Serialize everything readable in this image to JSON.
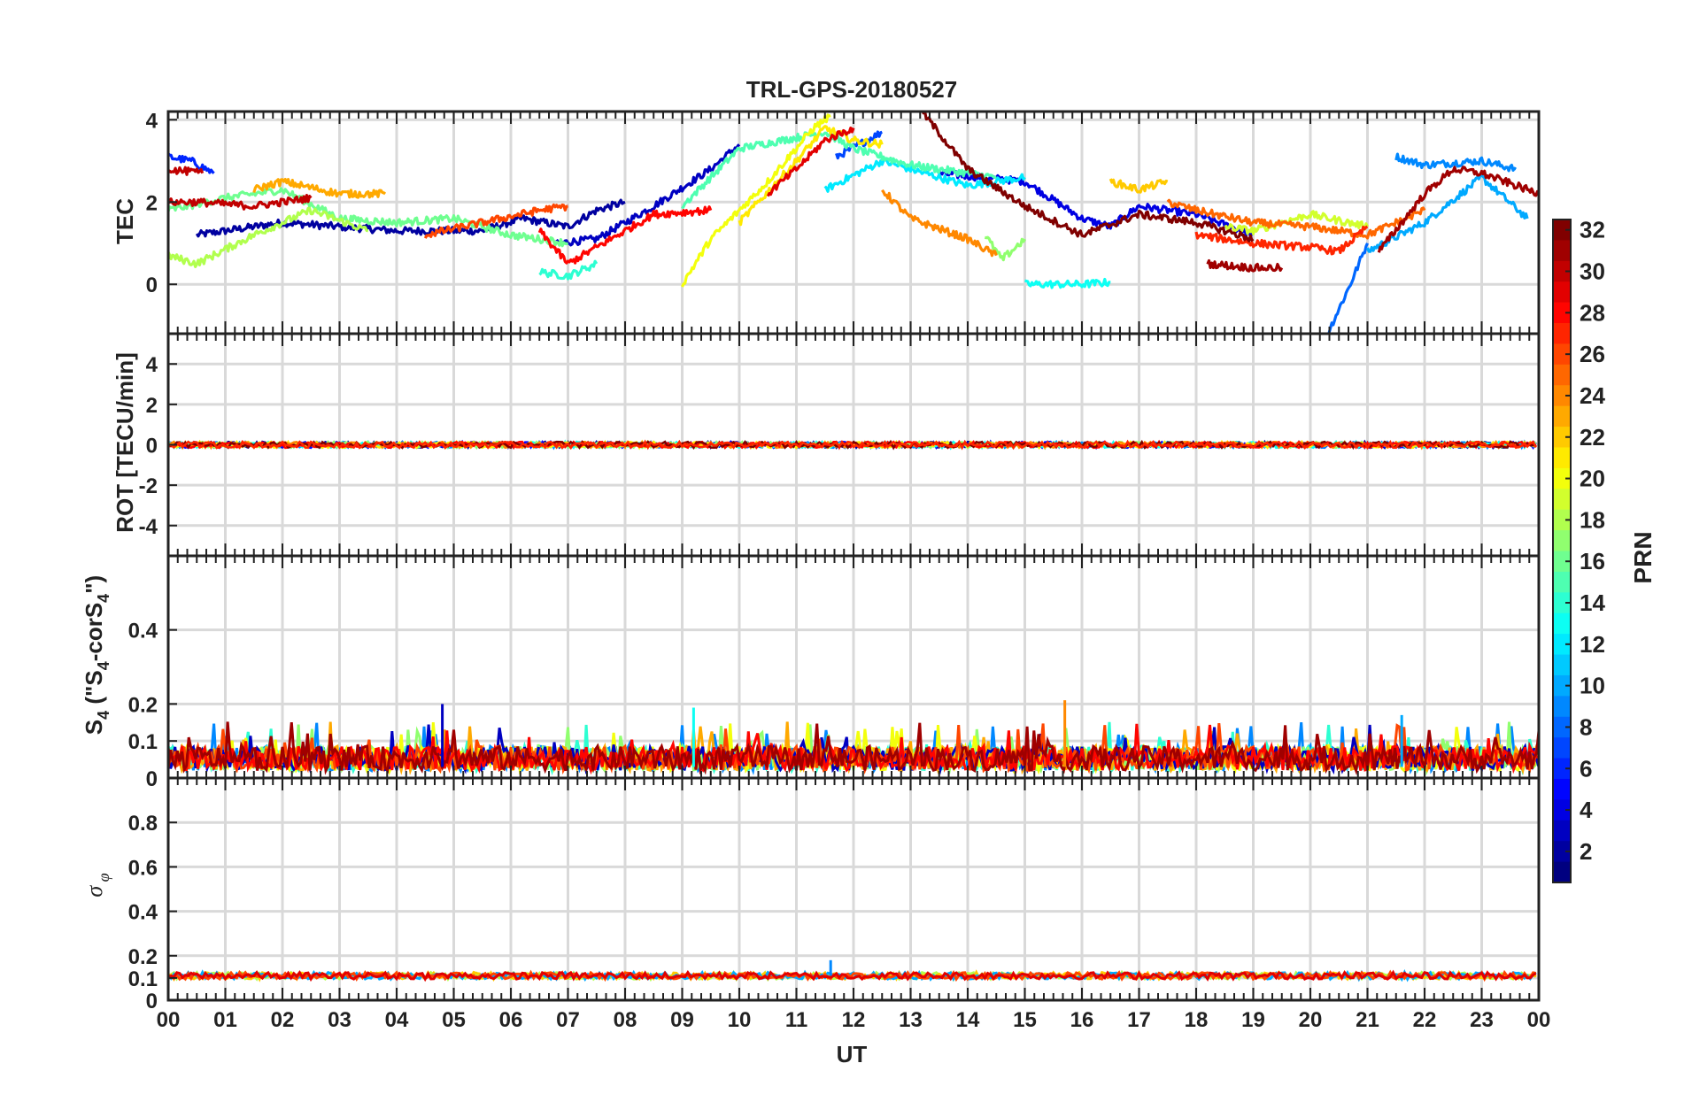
{
  "chart_data": {
    "type": "line",
    "title": "TRL-GPS-20180527",
    "xlabel": "UT",
    "x_tick_labels": [
      "00",
      "01",
      "02",
      "03",
      "04",
      "05",
      "06",
      "07",
      "08",
      "09",
      "10",
      "11",
      "12",
      "13",
      "14",
      "15",
      "16",
      "17",
      "18",
      "19",
      "20",
      "21",
      "22",
      "23",
      "00"
    ],
    "xlim_hours": [
      0,
      24
    ],
    "colorbar": {
      "label": "PRN",
      "range": [
        1,
        32
      ],
      "tick_labels": [
        "2",
        "4",
        "6",
        "8",
        "10",
        "12",
        "14",
        "16",
        "18",
        "20",
        "22",
        "24",
        "26",
        "28",
        "30",
        "32"
      ]
    },
    "panels": [
      {
        "name": "tec",
        "ylabel": "TEC",
        "ylim": [
          -1.2,
          4.2
        ],
        "y_ticks": [
          0,
          2,
          4
        ],
        "y_tick_labels": [
          "0",
          "2",
          "4"
        ],
        "series": [
          {
            "prn": 2,
            "t": [
              0.5,
              2,
              4,
              5.5,
              6.2,
              7,
              7.5,
              8
            ],
            "v": [
              1.2,
              1.5,
              1.3,
              1.3,
              1.6,
              1.4,
              1.8,
              2.0
            ]
          },
          {
            "prn": 3,
            "t": [
              6.8,
              7.5,
              8.5,
              9.5,
              10.0
            ],
            "v": [
              1.0,
              1.1,
              1.9,
              2.8,
              3.4
            ]
          },
          {
            "prn": 4,
            "t": [
              13.5,
              15,
              16,
              16.5,
              17,
              18,
              19
            ],
            "v": [
              2.7,
              2.5,
              1.6,
              1.4,
              1.9,
              1.7,
              1.2
            ]
          },
          {
            "prn": 6,
            "t": [
              0,
              0.4,
              0.8
            ],
            "v": [
              3.1,
              3.0,
              2.7
            ]
          },
          {
            "prn": 7,
            "t": [
              11.7,
              12.5
            ],
            "v": [
              3.1,
              3.7
            ]
          },
          {
            "prn": 8,
            "t": [
              20.3,
              20.7,
              21.0
            ],
            "v": [
              -1.2,
              0.0,
              1.0
            ]
          },
          {
            "prn": 9,
            "t": [
              21.5,
              22,
              23,
              23.6
            ],
            "v": [
              3.1,
              2.9,
              3.0,
              2.8
            ]
          },
          {
            "prn": 10,
            "t": [
              21.0,
              22,
              23,
              23.8
            ],
            "v": [
              0.8,
              1.5,
              2.6,
              1.6
            ]
          },
          {
            "prn": 12,
            "t": [
              11.5,
              12.5,
              13,
              14,
              15
            ],
            "v": [
              2.3,
              3.0,
              2.8,
              2.4,
              2.6
            ]
          },
          {
            "prn": 13,
            "t": [
              15,
              15.5,
              16,
              16.5
            ],
            "v": [
              0.0,
              0.0,
              0.0,
              0.05
            ]
          },
          {
            "prn": 14,
            "t": [
              6.5,
              7,
              7.5
            ],
            "v": [
              0.3,
              0.2,
              0.5
            ]
          },
          {
            "prn": 15,
            "t": [
              9.0,
              10,
              11.5,
              12,
              13,
              14.5
            ],
            "v": [
              1.9,
              3.3,
              3.7,
              3.3,
              2.9,
              2.6
            ]
          },
          {
            "prn": 16,
            "t": [
              0,
              1,
              2,
              3,
              4,
              5,
              6,
              7
            ],
            "v": [
              1.8,
              2.1,
              2.3,
              1.6,
              1.5,
              1.6,
              1.2,
              1.0
            ]
          },
          {
            "prn": 17,
            "t": [
              14.3,
              14.6,
              15
            ],
            "v": [
              1.2,
              0.6,
              1.1
            ]
          },
          {
            "prn": 18,
            "t": [
              0,
              0.5,
              1.5,
              2.5,
              3.5
            ],
            "v": [
              0.7,
              0.5,
              1.2,
              1.8,
              1.3
            ]
          },
          {
            "prn": 19,
            "t": [
              18.5,
              19,
              20,
              21
            ],
            "v": [
              1.4,
              1.3,
              1.7,
              1.4
            ]
          },
          {
            "prn": 20,
            "t": [
              9.0,
              9.5,
              10.5,
              11.3,
              11.6
            ],
            "v": [
              0.0,
              1.1,
              2.5,
              3.8,
              4.1
            ]
          },
          {
            "prn": 21,
            "t": [
              10.0,
              11,
              11.5,
              12,
              12.5
            ],
            "v": [
              1.5,
              3.0,
              3.8,
              3.5,
              3.4
            ]
          },
          {
            "prn": 22,
            "t": [
              16.5,
              17,
              17.5
            ],
            "v": [
              2.5,
              2.3,
              2.5
            ]
          },
          {
            "prn": 23,
            "t": [
              1.5,
              2,
              3,
              3.8
            ],
            "v": [
              2.3,
              2.5,
              2.2,
              2.2
            ]
          },
          {
            "prn": 24,
            "t": [
              12.5,
              13,
              14,
              14.5
            ],
            "v": [
              2.3,
              1.6,
              1.1,
              0.7
            ]
          },
          {
            "prn": 25,
            "t": [
              17.5,
              18,
              19,
              20,
              21,
              22
            ],
            "v": [
              2.0,
              1.8,
              1.5,
              1.4,
              1.2,
              1.8
            ]
          },
          {
            "prn": 26,
            "t": [
              4.5,
              5.5,
              6.5,
              7.0
            ],
            "v": [
              1.2,
              1.5,
              1.8,
              1.9
            ]
          },
          {
            "prn": 27,
            "t": [
              18,
              19,
              20,
              20.5,
              21
            ],
            "v": [
              1.2,
              1.0,
              0.9,
              0.8,
              1.4
            ]
          },
          {
            "prn": 28,
            "t": [
              6.5,
              7,
              7.5,
              8.5,
              9.5
            ],
            "v": [
              1.3,
              0.5,
              0.9,
              1.7,
              1.8
            ]
          },
          {
            "prn": 29,
            "t": [
              10.5,
              11,
              11.5,
              12
            ],
            "v": [
              2.2,
              2.8,
              3.5,
              3.8
            ]
          },
          {
            "prn": 30,
            "t": [
              0,
              0.5,
              1.5,
              2.5
            ],
            "v": [
              2.0,
              2.0,
              1.9,
              2.1
            ]
          },
          {
            "prn": 31,
            "t": [
              18.2,
              19,
              19.5
            ],
            "v": [
              0.5,
              0.4,
              0.4
            ]
          },
          {
            "prn": 32,
            "t": [
              13.2,
              14,
              15,
              16,
              17,
              18,
              19
            ],
            "v": [
              4.2,
              2.8,
              1.9,
              1.2,
              1.7,
              1.5,
              1.1
            ]
          },
          {
            "prn": 31,
            "t": [
              21.2,
              22,
              22.5,
              23,
              24
            ],
            "v": [
              0.8,
              2.2,
              2.8,
              2.7,
              2.2
            ]
          },
          {
            "prn": 30,
            "t": [
              0,
              0.6
            ],
            "v": [
              2.8,
              2.7
            ]
          }
        ]
      },
      {
        "name": "rot",
        "ylabel": "ROT [TECU/min]",
        "ylim": [
          -5.5,
          5.5
        ],
        "y_ticks": [
          -4,
          -2,
          0,
          2,
          4
        ],
        "y_tick_labels": [
          "-4",
          "-2",
          "0",
          "2",
          "4"
        ],
        "baseline": 0,
        "note": "All PRN series fluctuate within approximately ±0.2 TECU/min around 0"
      },
      {
        "name": "s4",
        "ylabel": "S4 (\"S4-corS4\")",
        "ylim": [
          0,
          0.6
        ],
        "y_ticks": [
          0,
          0.1,
          0.2,
          0.4
        ],
        "y_tick_labels": [
          "0",
          "0.1",
          "0.2",
          "0.4"
        ],
        "typical_range": [
          0.02,
          0.14
        ],
        "max_value": 0.21,
        "note": "Noisy S4 values per PRN, mostly between 0.02 and 0.14"
      },
      {
        "name": "sigma",
        "ylabel": "σ φ",
        "ylim": [
          0,
          1
        ],
        "y_ticks": [
          0,
          0.1,
          0.2,
          0.4,
          0.6,
          0.8
        ],
        "y_tick_labels": [
          "0",
          "0.1",
          "0.2",
          "0.4",
          "0.6",
          "0.8"
        ],
        "typical_value": 0.11,
        "max_value": 0.18,
        "note": "Phase scintillation stays near 0.1 for all PRNs"
      }
    ]
  }
}
